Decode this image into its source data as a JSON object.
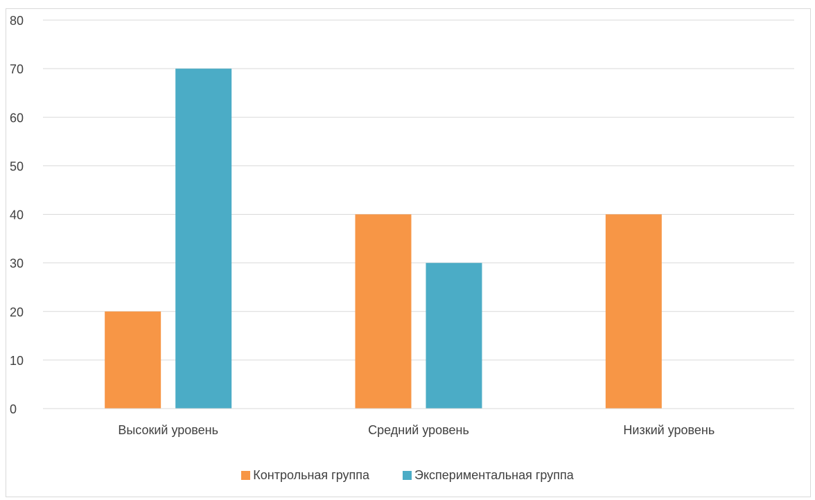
{
  "chart_data": {
    "type": "bar",
    "title": "",
    "xlabel": "",
    "ylabel": "",
    "categories": [
      "Высокий уровень",
      "Средний уровень",
      "Низкий уровень"
    ],
    "series": [
      {
        "name": "Контрольная группа",
        "values": [
          20,
          40,
          40
        ],
        "color": "#F79646"
      },
      {
        "name": "Экспериментальная группа",
        "values": [
          70,
          30,
          0
        ],
        "color": "#4BACC6"
      }
    ],
    "ylim": [
      0,
      80
    ],
    "yticks": [
      "0",
      "10",
      "20",
      "30",
      "40",
      "50",
      "60",
      "70",
      "80"
    ],
    "grid": true,
    "legend_position": "bottom"
  }
}
